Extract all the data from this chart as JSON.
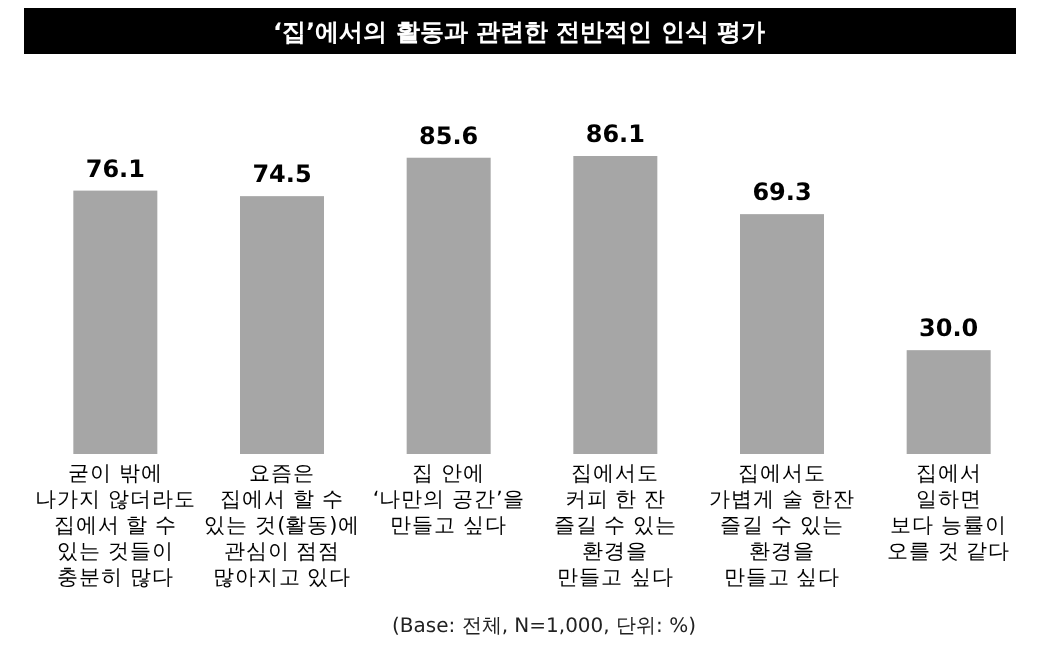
{
  "chart_data": {
    "type": "bar",
    "title": "‘집’에서의 활동과 관련한 전반적인 인식 평가",
    "categories": [
      "굳이 밖에\n나가지 않더라도\n집에서 할 수\n있는 것들이\n충분히 많다",
      "요즘은\n집에서 할 수\n있는 것(활동)에\n관심이 점점\n많아지고 있다",
      "집 안에\n‘나만의 공간’을\n만들고 싶다",
      "집에서도\n커피 한 잔\n즐길 수 있는\n환경을\n만들고 싶다",
      "집에서도\n가볍게 술 한잔\n즐길 수 있는\n환경을\n만들고 싶다",
      "집에서\n일하면\n보다 능률이\n오를 것 같다"
    ],
    "values": [
      76.1,
      74.5,
      85.6,
      86.1,
      69.3,
      30.0
    ],
    "value_labels": [
      "76.1",
      "74.5",
      "85.6",
      "86.1",
      "69.3",
      "30.0"
    ],
    "color": "#a6a6a6",
    "annotations": [
      "(Base: 전체, N=1,000, 단위: %)"
    ]
  }
}
